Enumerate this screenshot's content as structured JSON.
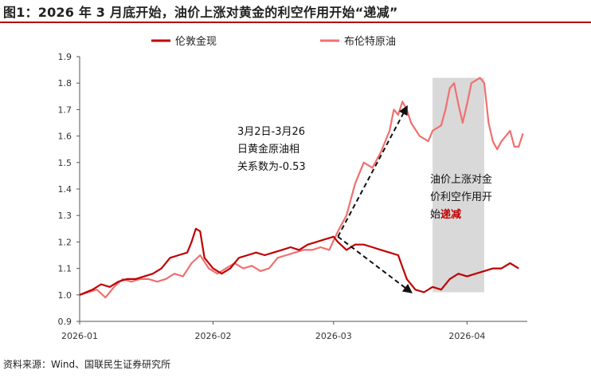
{
  "header": {
    "title": "图1：2026 年 3 月底开始，油价上涨对黄金的利空作用开始“递减”"
  },
  "footer": {
    "source": "资料来源：Wind、国联民生证券研究所"
  },
  "colors": {
    "gold": "#c00000",
    "oil": "#f07070",
    "shade": "#d9d9d9",
    "accent": "#c00000"
  },
  "chart_data": {
    "type": "line",
    "title": "",
    "xlabel": "",
    "ylabel": "",
    "ylim": [
      0.9,
      1.9
    ],
    "yticks": [
      "0.9",
      "1.0",
      "1.1",
      "1.2",
      "1.3",
      "1.4",
      "1.5",
      "1.6",
      "1.7",
      "1.8",
      "1.9"
    ],
    "xlim": [
      "2026-01-01",
      "2026-04-15"
    ],
    "xticks": [
      {
        "date": "2026-01-01",
        "label": "2026-01"
      },
      {
        "date": "2026-02-01",
        "label": "2026-02"
      },
      {
        "date": "2026-03-01",
        "label": "2026-03"
      },
      {
        "date": "2026-04-01",
        "label": "2026-04"
      }
    ],
    "legend": {
      "placement": "top"
    },
    "shaded_region": {
      "start": "2026-03-24",
      "end": "2026-04-05",
      "ymin": 1.01,
      "ymax": 1.82
    },
    "annotations": [
      {
        "lines": [
          "3月2日-3月26",
          "日黄金原油相",
          "关系数为-0.53"
        ]
      },
      {
        "lines": [
          "油价上涨对金",
          "价利空作用开"
        ],
        "last_prefix": "始",
        "last_highlight": "递减"
      }
    ],
    "series": [
      {
        "name": "伦敦金现",
        "color": "#c00000",
        "points": [
          [
            "2026-01-01",
            1.0
          ],
          [
            "2026-01-04",
            1.02
          ],
          [
            "2026-01-06",
            1.04
          ],
          [
            "2026-01-08",
            1.03
          ],
          [
            "2026-01-10",
            1.05
          ],
          [
            "2026-01-12",
            1.06
          ],
          [
            "2026-01-14",
            1.06
          ],
          [
            "2026-01-16",
            1.07
          ],
          [
            "2026-01-18",
            1.08
          ],
          [
            "2026-01-20",
            1.1
          ],
          [
            "2026-01-22",
            1.14
          ],
          [
            "2026-01-24",
            1.15
          ],
          [
            "2026-01-26",
            1.16
          ],
          [
            "2026-01-27",
            1.2
          ],
          [
            "2026-01-28",
            1.25
          ],
          [
            "2026-01-29",
            1.24
          ],
          [
            "2026-01-30",
            1.14
          ],
          [
            "2026-02-01",
            1.1
          ],
          [
            "2026-02-03",
            1.08
          ],
          [
            "2026-02-05",
            1.1
          ],
          [
            "2026-02-07",
            1.14
          ],
          [
            "2026-02-09",
            1.15
          ],
          [
            "2026-02-11",
            1.16
          ],
          [
            "2026-02-13",
            1.15
          ],
          [
            "2026-02-15",
            1.16
          ],
          [
            "2026-02-17",
            1.17
          ],
          [
            "2026-02-19",
            1.18
          ],
          [
            "2026-02-21",
            1.17
          ],
          [
            "2026-02-23",
            1.19
          ],
          [
            "2026-02-25",
            1.2
          ],
          [
            "2026-02-27",
            1.21
          ],
          [
            "2026-03-01",
            1.22
          ],
          [
            "2026-03-02",
            1.2
          ],
          [
            "2026-03-04",
            1.17
          ],
          [
            "2026-03-06",
            1.19
          ],
          [
            "2026-03-08",
            1.19
          ],
          [
            "2026-03-10",
            1.18
          ],
          [
            "2026-03-12",
            1.17
          ],
          [
            "2026-03-14",
            1.16
          ],
          [
            "2026-03-16",
            1.15
          ],
          [
            "2026-03-18",
            1.06
          ],
          [
            "2026-03-20",
            1.02
          ],
          [
            "2026-03-22",
            1.01
          ],
          [
            "2026-03-24",
            1.03
          ],
          [
            "2026-03-26",
            1.02
          ],
          [
            "2026-03-28",
            1.06
          ],
          [
            "2026-03-30",
            1.08
          ],
          [
            "2026-04-01",
            1.07
          ],
          [
            "2026-04-03",
            1.08
          ],
          [
            "2026-04-05",
            1.09
          ],
          [
            "2026-04-07",
            1.1
          ],
          [
            "2026-04-09",
            1.1
          ],
          [
            "2026-04-11",
            1.12
          ],
          [
            "2026-04-13",
            1.1
          ]
        ]
      },
      {
        "name": "布伦特原油",
        "color": "#f07070",
        "points": [
          [
            "2026-01-01",
            1.0
          ],
          [
            "2026-01-03",
            1.01
          ],
          [
            "2026-01-05",
            1.02
          ],
          [
            "2026-01-07",
            0.99
          ],
          [
            "2026-01-09",
            1.03
          ],
          [
            "2026-01-11",
            1.06
          ],
          [
            "2026-01-13",
            1.05
          ],
          [
            "2026-01-15",
            1.06
          ],
          [
            "2026-01-17",
            1.06
          ],
          [
            "2026-01-19",
            1.05
          ],
          [
            "2026-01-21",
            1.06
          ],
          [
            "2026-01-23",
            1.08
          ],
          [
            "2026-01-25",
            1.07
          ],
          [
            "2026-01-27",
            1.12
          ],
          [
            "2026-01-29",
            1.15
          ],
          [
            "2026-01-31",
            1.1
          ],
          [
            "2026-02-02",
            1.08
          ],
          [
            "2026-02-04",
            1.1
          ],
          [
            "2026-02-06",
            1.12
          ],
          [
            "2026-02-08",
            1.1
          ],
          [
            "2026-02-10",
            1.11
          ],
          [
            "2026-02-12",
            1.09
          ],
          [
            "2026-02-14",
            1.1
          ],
          [
            "2026-02-16",
            1.14
          ],
          [
            "2026-02-18",
            1.15
          ],
          [
            "2026-02-20",
            1.16
          ],
          [
            "2026-02-22",
            1.17
          ],
          [
            "2026-02-24",
            1.17
          ],
          [
            "2026-02-26",
            1.18
          ],
          [
            "2026-02-28",
            1.17
          ],
          [
            "2026-03-02",
            1.24
          ],
          [
            "2026-03-04",
            1.3
          ],
          [
            "2026-03-06",
            1.42
          ],
          [
            "2026-03-08",
            1.5
          ],
          [
            "2026-03-10",
            1.48
          ],
          [
            "2026-03-12",
            1.54
          ],
          [
            "2026-03-14",
            1.62
          ],
          [
            "2026-03-15",
            1.7
          ],
          [
            "2026-03-16",
            1.68
          ],
          [
            "2026-03-17",
            1.73
          ],
          [
            "2026-03-18",
            1.7
          ],
          [
            "2026-03-19",
            1.65
          ],
          [
            "2026-03-21",
            1.6
          ],
          [
            "2026-03-23",
            1.58
          ],
          [
            "2026-03-24",
            1.62
          ],
          [
            "2026-03-26",
            1.64
          ],
          [
            "2026-03-27",
            1.7
          ],
          [
            "2026-03-28",
            1.78
          ],
          [
            "2026-03-29",
            1.8
          ],
          [
            "2026-03-30",
            1.72
          ],
          [
            "2026-03-31",
            1.65
          ],
          [
            "2026-04-01",
            1.72
          ],
          [
            "2026-04-02",
            1.8
          ],
          [
            "2026-04-03",
            1.81
          ],
          [
            "2026-04-04",
            1.82
          ],
          [
            "2026-04-05",
            1.8
          ],
          [
            "2026-04-06",
            1.65
          ],
          [
            "2026-04-07",
            1.58
          ],
          [
            "2026-04-08",
            1.55
          ],
          [
            "2026-04-09",
            1.58
          ],
          [
            "2026-04-10",
            1.6
          ],
          [
            "2026-04-11",
            1.62
          ],
          [
            "2026-04-12",
            1.56
          ],
          [
            "2026-04-13",
            1.56
          ],
          [
            "2026-04-14",
            1.61
          ]
        ]
      }
    ]
  }
}
